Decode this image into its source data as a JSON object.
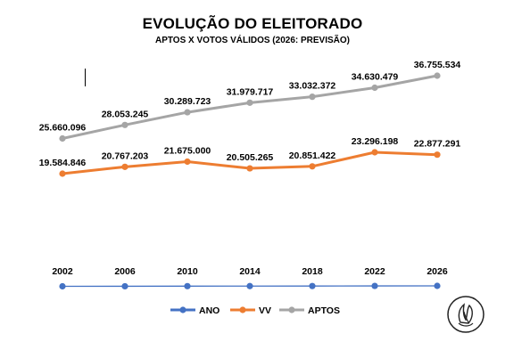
{
  "chart_data": {
    "type": "line",
    "title": "EVOLUÇÃO DO ELEITORADO",
    "subtitle": "APTOS X VOTOS VÁLIDOS (2026: PREVISÃO)",
    "categories": [
      "2002",
      "2006",
      "2010",
      "2014",
      "2018",
      "2022",
      "2026"
    ],
    "series": [
      {
        "name": "ANO",
        "color": "#4472C4",
        "values": [
          2002,
          2006,
          2010,
          2014,
          2018,
          2022,
          2026
        ]
      },
      {
        "name": "VV",
        "color": "#ED7D31",
        "values": [
          19584846,
          20767203,
          21675000,
          20505265,
          20851422,
          23296198,
          22877291
        ],
        "labels": [
          "19.584.846",
          "20.767.203",
          "21.675.000",
          "20.505.265",
          "20.851.422",
          "23.296.198",
          "22.877.291"
        ]
      },
      {
        "name": "APTOS",
        "color": "#A5A5A5",
        "values": [
          25660096,
          28053245,
          30289723,
          31979717,
          33032372,
          34630479,
          36755534
        ],
        "labels": [
          "25.660.096",
          "28.053.245",
          "30.289.723",
          "31.979.717",
          "33.032.372",
          "34.630.479",
          "36.755.534"
        ]
      }
    ],
    "legend_position": "bottom",
    "grid": false
  },
  "logo": {
    "name": "seal-logo-icon"
  }
}
